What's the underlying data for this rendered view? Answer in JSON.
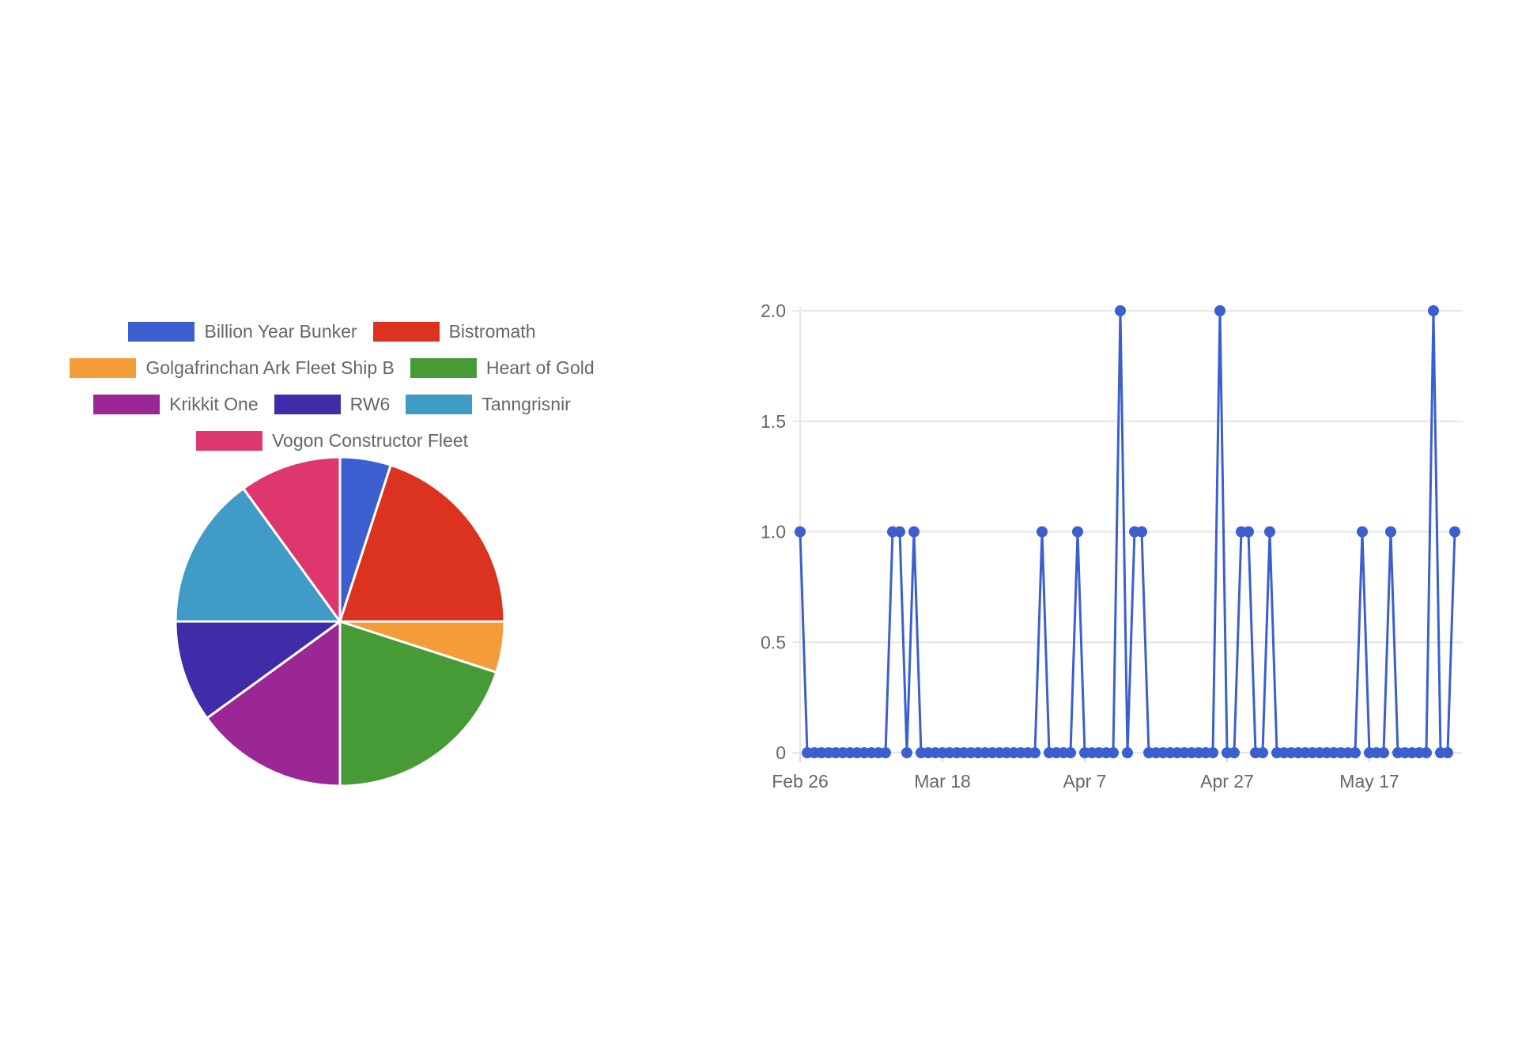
{
  "chart_data": [
    {
      "type": "pie",
      "legend_position": "top",
      "slices": [
        {
          "label": "Billion Year Bunker",
          "value": 1,
          "color": "#3B5FCE"
        },
        {
          "label": "Bistromath",
          "value": 4,
          "color": "#DC3220"
        },
        {
          "label": "Golgafrinchan Ark Fleet Ship B",
          "value": 1,
          "color": "#F39C38"
        },
        {
          "label": "Heart of Gold",
          "value": 4,
          "color": "#469B37"
        },
        {
          "label": "Krikkit One",
          "value": 3,
          "color": "#9A2795"
        },
        {
          "label": "RW6",
          "value": 2,
          "color": "#402CA8"
        },
        {
          "label": "Tanngrisnir",
          "value": 3,
          "color": "#419BC7"
        },
        {
          "label": "Vogon Constructor Fleet",
          "value": 2,
          "color": "#DD376E"
        }
      ]
    },
    {
      "type": "line",
      "color": "#3B5FCE",
      "grid": true,
      "legend": false,
      "ylim": [
        0,
        2
      ],
      "yticks": [
        "0",
        "0.5",
        "1.0",
        "1.5",
        "2.0"
      ],
      "xticks": [
        "Feb 26",
        "Mar 18",
        "Apr 7",
        "Apr 27",
        "May 17"
      ],
      "xlim": [
        "Feb 26",
        "May 25"
      ],
      "series": [
        {
          "values": [
            1,
            0,
            0,
            0,
            0,
            0,
            0,
            0,
            0,
            0,
            0,
            0,
            0,
            1,
            1,
            0,
            1,
            0,
            0,
            0,
            0,
            0,
            0,
            0,
            0,
            0,
            0,
            0,
            0,
            0,
            0,
            0,
            0,
            0,
            1,
            0,
            0,
            0,
            0,
            1,
            0,
            0,
            0,
            0,
            0,
            2,
            0,
            1,
            1,
            0,
            0,
            0,
            0,
            0,
            0,
            0,
            0,
            0,
            0,
            2,
            0,
            0,
            1,
            1,
            0,
            0,
            1,
            0,
            0,
            0,
            0,
            0,
            0,
            0,
            0,
            0,
            0,
            0,
            0,
            1,
            0,
            0,
            0,
            1,
            0,
            0,
            0,
            0,
            0,
            2,
            0,
            0,
            1
          ]
        }
      ]
    }
  ]
}
